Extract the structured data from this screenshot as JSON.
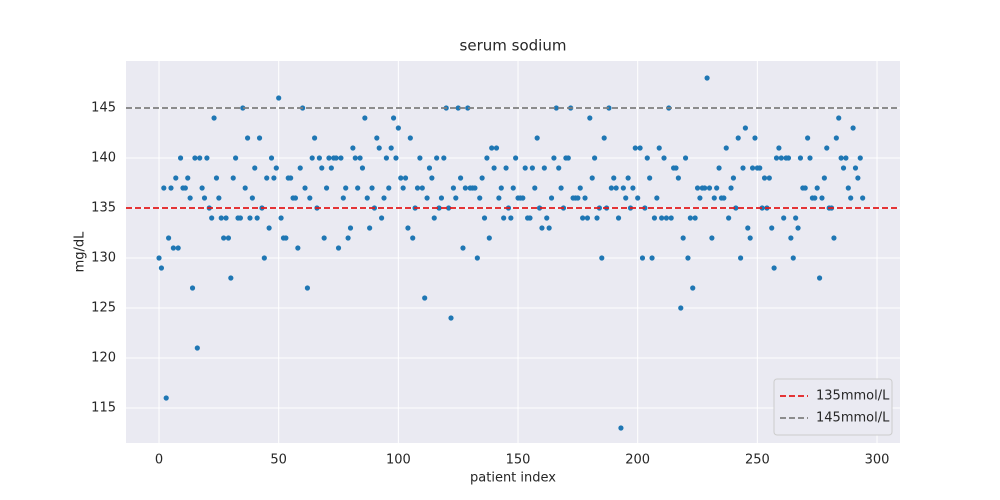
{
  "chart_data": {
    "type": "scatter",
    "title": "serum sodium",
    "x_label": "patient index",
    "y_label": "mg/dL",
    "series": [
      {
        "color": "#1f77b4",
        "values": [
          130,
          129,
          137,
          116,
          132,
          137,
          131,
          138,
          131,
          140,
          137,
          137,
          138,
          136,
          127,
          140,
          121,
          140,
          137,
          136,
          140,
          135,
          134,
          144,
          138,
          136,
          134,
          132,
          134,
          132,
          128,
          138,
          140,
          134,
          134,
          145,
          137,
          142,
          134,
          136,
          139,
          134,
          142,
          135,
          130,
          138,
          133,
          140,
          138,
          139,
          146,
          134,
          132,
          132,
          138,
          138,
          136,
          136,
          131,
          139,
          145,
          137,
          127,
          136,
          140,
          142,
          135,
          140,
          139,
          132,
          137,
          140,
          139,
          140,
          140,
          131,
          140,
          136,
          137,
          132,
          133,
          141,
          140,
          137,
          140,
          139,
          144,
          136,
          133,
          137,
          135,
          142,
          141,
          134,
          136,
          140,
          137,
          141,
          144,
          140,
          143,
          138,
          137,
          138,
          133,
          142,
          132,
          135,
          137,
          140,
          137,
          126,
          136,
          139,
          138,
          134,
          140,
          135,
          136,
          140,
          145,
          135,
          124,
          137,
          136,
          145,
          138,
          131,
          137,
          145,
          137,
          137,
          137,
          130,
          136,
          138,
          134,
          140,
          132,
          141,
          139,
          141,
          136,
          137,
          134,
          139,
          135,
          134,
          137,
          140,
          136,
          136,
          136,
          139,
          134,
          134,
          139,
          137,
          142,
          135,
          133,
          139,
          134,
          133,
          136,
          140,
          145,
          139,
          137,
          135,
          140,
          140,
          145,
          136,
          136,
          136,
          137,
          134,
          136,
          134,
          144,
          138,
          140,
          134,
          135,
          130,
          142,
          135,
          145,
          137,
          138,
          137,
          134,
          113,
          137,
          136,
          138,
          135,
          137,
          141,
          136,
          141,
          130,
          135,
          140,
          138,
          130,
          134,
          136,
          141,
          134,
          140,
          134,
          145,
          134,
          139,
          139,
          138,
          125,
          132,
          140,
          130,
          134,
          127,
          134,
          137,
          136,
          137,
          137,
          148,
          137,
          132,
          136,
          137,
          139,
          136,
          136,
          141,
          134,
          137,
          138,
          135,
          142,
          130,
          139,
          143,
          133,
          132,
          139,
          142,
          139,
          139,
          135,
          138,
          135,
          138,
          133,
          129,
          140,
          141,
          140,
          134,
          140,
          140,
          132,
          130,
          134,
          133,
          140,
          137,
          137,
          142,
          140,
          136,
          136,
          137,
          128,
          136,
          138,
          141,
          135,
          135,
          132,
          142,
          144,
          140,
          139,
          140,
          137,
          136,
          143,
          139,
          138,
          140,
          136
        ]
      }
    ],
    "hlines": [
      {
        "name": "135mmol/L",
        "value": 135,
        "color": "#e31a1c"
      },
      {
        "name": "145mmol/L",
        "value": 145,
        "color": "#7f7f7f"
      }
    ],
    "xlim": [
      -13.8,
      309.6
    ],
    "ylim": [
      111.5,
      149.7
    ],
    "xticks": [
      0,
      50,
      100,
      150,
      200,
      250,
      300
    ],
    "yticks": [
      115,
      120,
      125,
      130,
      135,
      140,
      145
    ],
    "grid": true,
    "legend": "lower right"
  }
}
